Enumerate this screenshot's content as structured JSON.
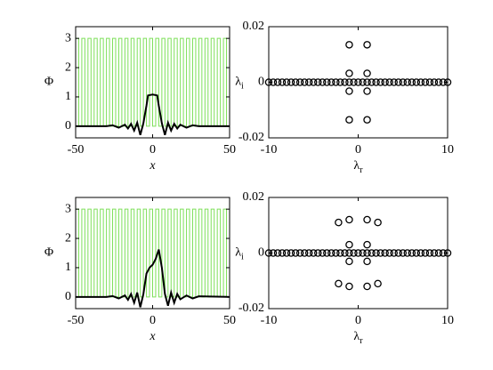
{
  "chart_data": [
    {
      "type": "line",
      "ylabel": "Φ",
      "xlabel": "x",
      "xlim": [
        -50,
        50
      ],
      "ylim": [
        -0.4,
        3.4
      ],
      "xticks": [
        -50,
        0,
        50
      ],
      "yticks": [
        0,
        1,
        2,
        3
      ],
      "series": [
        {
          "color": "#7ee05a",
          "x": [
            -50,
            -50,
            -48,
            -48,
            -46,
            -46,
            -44,
            -44,
            -42,
            -42,
            -40,
            -40,
            -38,
            -38,
            -36,
            -36,
            -34,
            -34,
            -32,
            -32,
            -30,
            -30,
            -28,
            -28,
            -26,
            -26,
            -24,
            -24,
            -22,
            -22,
            -20,
            -20,
            -18,
            -18,
            -16,
            -16,
            -14,
            -14,
            -12,
            -12,
            -10,
            -10,
            -8,
            -8,
            -6,
            -6,
            -4,
            -4,
            -2,
            -2,
            0,
            0,
            2,
            2,
            4,
            4,
            6,
            6,
            8,
            8,
            10,
            10,
            12,
            12,
            14,
            14,
            16,
            16,
            18,
            18,
            20,
            20,
            22,
            22,
            24,
            24,
            26,
            26,
            28,
            28,
            30,
            30,
            32,
            32,
            34,
            34,
            36,
            36,
            38,
            38,
            40,
            40,
            42,
            42,
            44,
            44,
            46,
            46,
            48,
            48,
            50
          ],
          "values": [
            0,
            3,
            3,
            0,
            0,
            3,
            3,
            0,
            0,
            3,
            3,
            0,
            0,
            3,
            3,
            0,
            0,
            3,
            3,
            0,
            0,
            3,
            3,
            0,
            0,
            3,
            3,
            0,
            0,
            3,
            3,
            0,
            0,
            3,
            3,
            0,
            0,
            3,
            3,
            0,
            0,
            3,
            3,
            0,
            0,
            3,
            3,
            0,
            0,
            3,
            3,
            0,
            0,
            3,
            3,
            0,
            0,
            3,
            3,
            0,
            0,
            3,
            3,
            0,
            0,
            3,
            3,
            0,
            0,
            3,
            3,
            0,
            0,
            3,
            3,
            0,
            0,
            3,
            3,
            0,
            0,
            3,
            3,
            0,
            0,
            3,
            3,
            0,
            0,
            3,
            3,
            0,
            0,
            3,
            3,
            0,
            0,
            3,
            3,
            0,
            0
          ]
        },
        {
          "color": "#000000",
          "x": [
            -50,
            -30,
            -26,
            -22,
            -18,
            -16,
            -14,
            -12,
            -10,
            -8,
            -6,
            -4,
            -3,
            0,
            3,
            4,
            6,
            8,
            10,
            12,
            14,
            16,
            18,
            22,
            26,
            30,
            50
          ],
          "values": [
            0,
            0,
            0.03,
            -0.05,
            0.05,
            -0.08,
            0.08,
            -0.15,
            0.12,
            -0.3,
            0.1,
            0.7,
            1.05,
            1.08,
            1.05,
            0.7,
            0.1,
            -0.3,
            0.12,
            -0.15,
            0.08,
            -0.08,
            0.05,
            -0.05,
            0.03,
            0,
            0
          ]
        }
      ]
    },
    {
      "type": "scatter",
      "ylabel": "λ",
      "ylabel_sub": "i",
      "xlabel": "λ",
      "xlabel_sub": "r",
      "xlim": [
        -10,
        10
      ],
      "ylim": [
        -0.02,
        0.02
      ],
      "xticks": [
        -10,
        0,
        10
      ],
      "yticks": [
        -0.02,
        0,
        0.02
      ],
      "series": [
        {
          "color": "#000000",
          "x": [
            -10,
            -9.5,
            -9,
            -8.5,
            -8,
            -7.5,
            -7,
            -6.5,
            -6,
            -5.5,
            -5,
            -4.5,
            -4,
            -3.5,
            -3,
            -2.5,
            -2,
            -1.5,
            -1,
            -0.5,
            0,
            0.5,
            1,
            1.5,
            2,
            2.5,
            3,
            3.5,
            4,
            4.5,
            5,
            5.5,
            6,
            6.5,
            7,
            7.5,
            8,
            8.5,
            9,
            9.5,
            10
          ],
          "values": [
            0,
            0,
            0,
            0,
            0,
            0,
            0,
            0,
            0,
            0,
            0,
            0,
            0,
            0,
            0,
            0,
            0,
            0,
            0,
            0,
            0,
            0,
            0,
            0,
            0,
            0,
            0,
            0,
            0,
            0,
            0,
            0,
            0,
            0,
            0,
            0,
            0,
            0,
            0,
            0,
            0
          ]
        },
        {
          "color": "#000000",
          "x": [
            -1,
            1,
            -1,
            1,
            -1,
            1,
            -1,
            1
          ],
          "values": [
            0.0135,
            0.0135,
            0.0032,
            0.0032,
            -0.0032,
            -0.0032,
            -0.0135,
            -0.0135
          ]
        }
      ]
    },
    {
      "type": "line",
      "ylabel": "Φ",
      "xlabel": "x",
      "xlim": [
        -50,
        50
      ],
      "ylim": [
        -0.4,
        3.4
      ],
      "xticks": [
        -50,
        0,
        50
      ],
      "yticks": [
        0,
        1,
        2,
        3
      ],
      "series": [
        {
          "color": "#7ee05a",
          "x": [
            -50,
            -50,
            -48,
            -48,
            -46,
            -46,
            -44,
            -44,
            -42,
            -42,
            -40,
            -40,
            -38,
            -38,
            -36,
            -36,
            -34,
            -34,
            -32,
            -32,
            -30,
            -30,
            -28,
            -28,
            -26,
            -26,
            -24,
            -24,
            -22,
            -22,
            -20,
            -20,
            -18,
            -18,
            -16,
            -16,
            -14,
            -14,
            -12,
            -12,
            -10,
            -10,
            -8,
            -8,
            -6,
            -6,
            -4,
            -4,
            -2,
            -2,
            0,
            0,
            2,
            2,
            4,
            4,
            6,
            6,
            8,
            8,
            10,
            10,
            12,
            12,
            14,
            14,
            16,
            16,
            18,
            18,
            20,
            20,
            22,
            22,
            24,
            24,
            26,
            26,
            28,
            28,
            30,
            30,
            32,
            32,
            34,
            34,
            36,
            36,
            38,
            38,
            40,
            40,
            42,
            42,
            44,
            44,
            46,
            46,
            48,
            48,
            50
          ],
          "values": [
            0,
            3,
            3,
            0,
            0,
            3,
            3,
            0,
            0,
            3,
            3,
            0,
            0,
            3,
            3,
            0,
            0,
            3,
            3,
            0,
            0,
            3,
            3,
            0,
            0,
            3,
            3,
            0,
            0,
            3,
            3,
            0,
            0,
            3,
            3,
            0,
            0,
            3,
            3,
            0,
            0,
            3,
            3,
            0,
            0,
            3,
            3,
            0,
            0,
            3,
            3,
            0,
            0,
            3,
            3,
            0,
            0,
            3,
            3,
            0,
            0,
            3,
            3,
            0,
            0,
            3,
            3,
            0,
            0,
            3,
            3,
            0,
            0,
            3,
            3,
            0,
            0,
            3,
            3,
            0,
            0,
            3,
            3,
            0,
            0,
            3,
            3,
            0,
            0,
            3,
            3,
            0,
            0,
            3,
            3,
            0,
            0,
            3,
            3,
            0,
            0
          ]
        },
        {
          "color": "#000000",
          "x": [
            -50,
            -30,
            -26,
            -22,
            -18,
            -16,
            -14,
            -12,
            -10,
            -8,
            -6,
            -4,
            -2,
            0,
            2,
            4,
            6,
            8,
            10,
            12,
            14,
            16,
            18,
            22,
            26,
            30,
            50
          ],
          "values": [
            0,
            0,
            0.03,
            -0.05,
            0.05,
            -0.1,
            0.1,
            -0.2,
            0.15,
            -0.35,
            0.1,
            0.8,
            1.0,
            1.1,
            1.3,
            1.62,
            1.0,
            0.1,
            -0.3,
            0.15,
            -0.2,
            0.1,
            -0.08,
            0.05,
            -0.05,
            0.02,
            0
          ]
        }
      ]
    },
    {
      "type": "scatter",
      "ylabel": "λ",
      "ylabel_sub": "i",
      "xlabel": "λ",
      "xlabel_sub": "r",
      "xlim": [
        -10,
        10
      ],
      "ylim": [
        -0.02,
        0.02
      ],
      "xticks": [
        -10,
        0,
        10
      ],
      "yticks": [
        -0.02,
        0,
        0.02
      ],
      "series": [
        {
          "color": "#000000",
          "x": [
            -10,
            -9.5,
            -9,
            -8.5,
            -8,
            -7.5,
            -7,
            -6.5,
            -6,
            -5.5,
            -5,
            -4.5,
            -4,
            -3.5,
            -3,
            -2.5,
            -2,
            -1.5,
            -1,
            -0.5,
            0,
            0.5,
            1,
            1.5,
            2,
            2.5,
            3,
            3.5,
            4,
            4.5,
            5,
            5.5,
            6,
            6.5,
            7,
            7.5,
            8,
            8.5,
            9,
            9.5,
            10
          ],
          "values": [
            0,
            0,
            0,
            0,
            0,
            0,
            0,
            0,
            0,
            0,
            0,
            0,
            0,
            0,
            0,
            0,
            0,
            0,
            0,
            0,
            0,
            0,
            0,
            0,
            0,
            0,
            0,
            0,
            0,
            0,
            0,
            0,
            0,
            0,
            0,
            0,
            0,
            0,
            0,
            0,
            0
          ]
        },
        {
          "color": "#000000",
          "x": [
            -2.2,
            -1,
            1,
            2.2,
            -1,
            1,
            -1,
            1,
            -2.2,
            -1,
            1,
            2.2
          ],
          "values": [
            0.011,
            0.012,
            0.012,
            0.011,
            0.003,
            0.003,
            -0.003,
            -0.003,
            -0.011,
            -0.012,
            -0.012,
            -0.011
          ]
        }
      ]
    }
  ]
}
